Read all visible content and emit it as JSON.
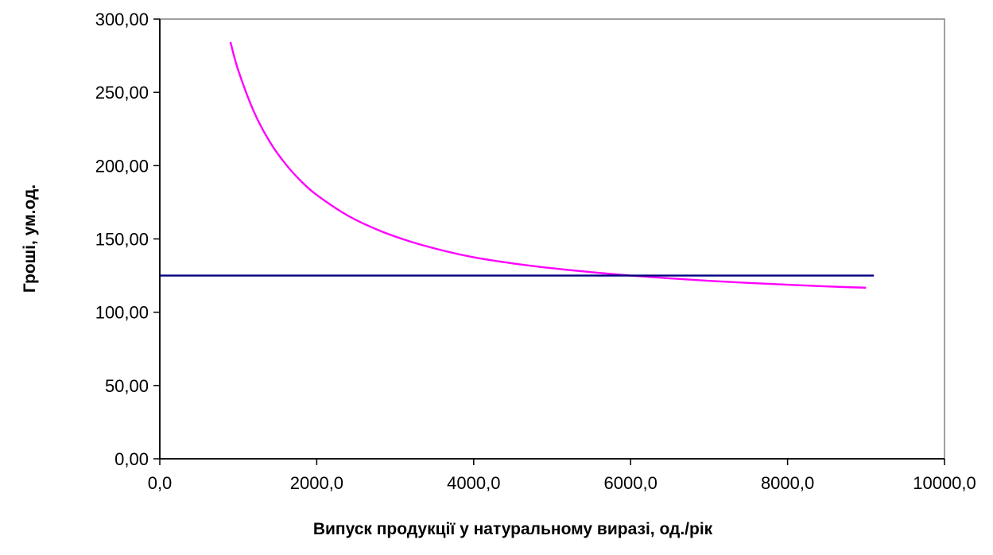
{
  "chart_data": {
    "type": "line",
    "title": "",
    "xlabel": "Випуск продукції у натуральному виразі, од./рік",
    "ylabel": "Гроші, ум.од.",
    "xlim": [
      0,
      10000
    ],
    "ylim": [
      0,
      300
    ],
    "x_ticks": [
      "0,0",
      "2000,0",
      "4000,0",
      "6000,0",
      "8000,0",
      "10000,0"
    ],
    "y_ticks": [
      "0,00",
      "50,00",
      "100,00",
      "150,00",
      "200,00",
      "250,00",
      "300,00"
    ],
    "grid": false,
    "legend": "none",
    "series": [
      {
        "color": "#ff00ff",
        "x": [
          900,
          1000,
          1200,
          1400,
          1600,
          1800,
          2000,
          2400,
          2800,
          3200,
          3600,
          4000,
          4500,
          5000,
          5500,
          6000,
          6500,
          7000,
          7500,
          8000,
          8500,
          9000
        ],
        "values": [
          284.4,
          265.0,
          236.7,
          216.4,
          201.3,
          189.4,
          180.0,
          165.8,
          155.7,
          148.1,
          142.2,
          137.5,
          133.3,
          130.0,
          127.3,
          125.0,
          123.1,
          121.4,
          120.0,
          118.8,
          117.6,
          116.7
        ]
      },
      {
        "color": "#000080",
        "x": [
          0,
          9100
        ],
        "values": [
          125,
          125
        ]
      }
    ]
  }
}
